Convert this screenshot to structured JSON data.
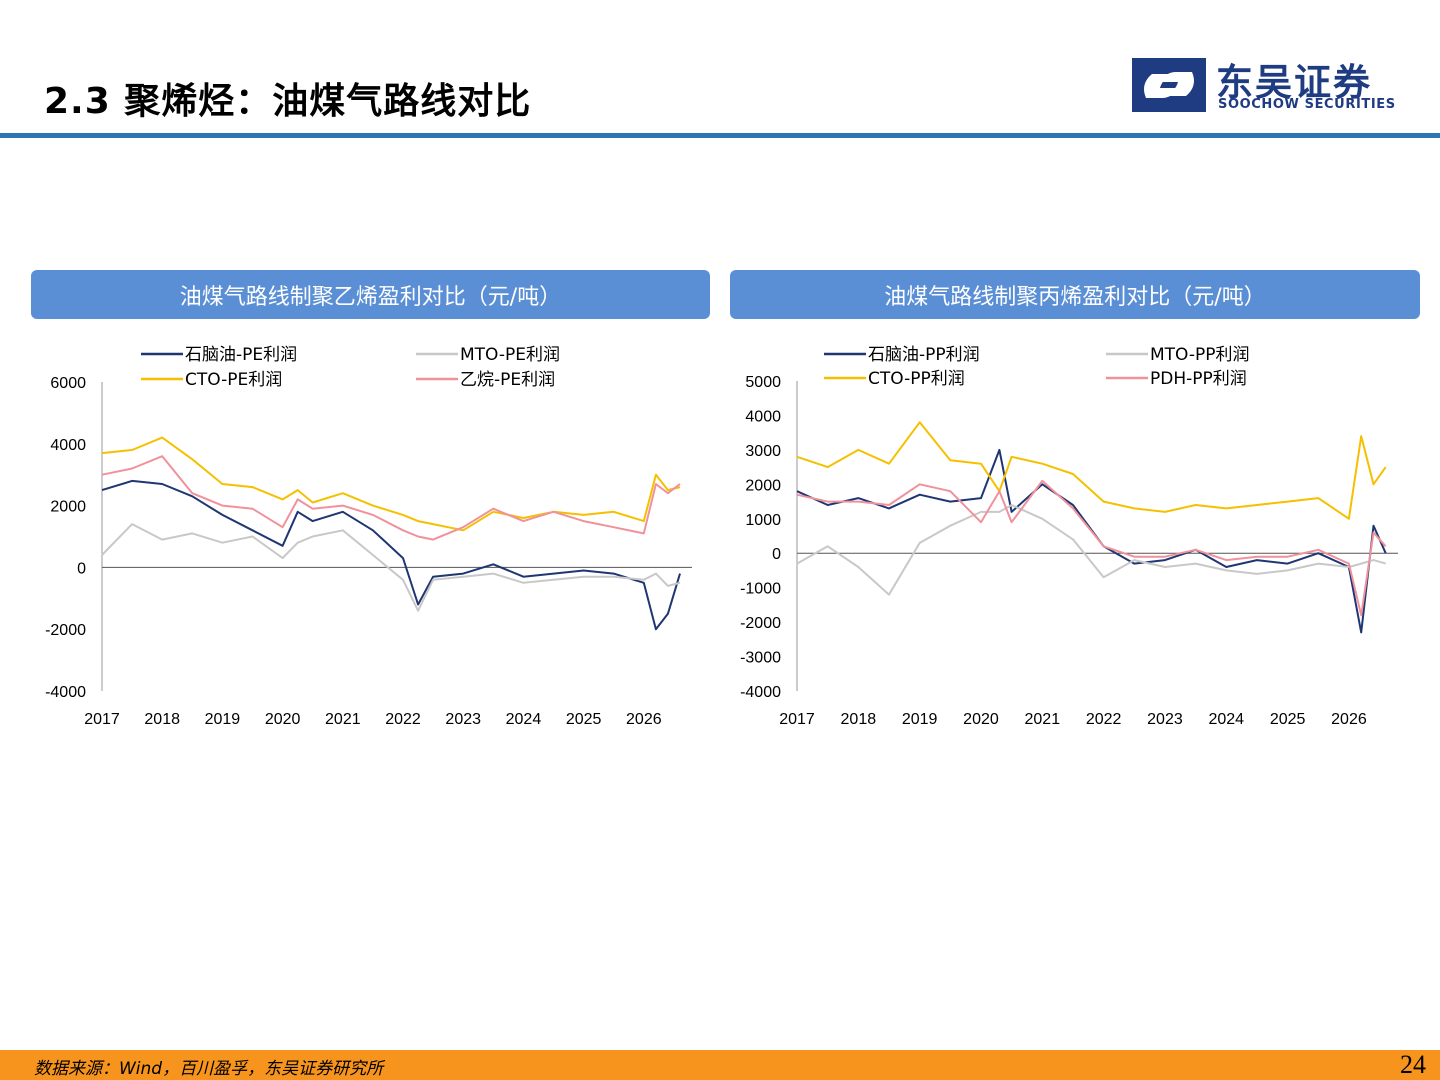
{
  "header": {
    "title": "2.3 聚烯烃：油煤气路线对比",
    "logo_cn": "东吴证券",
    "logo_en": "SOOCHOW SECURITIES",
    "accent": "#2e75b6"
  },
  "footer": {
    "source": "数据来源：Wind，百川盈孚，东吴证券研究所",
    "page_number": "24",
    "bar_color": "#f7941d"
  },
  "chart_data": [
    {
      "type": "line",
      "title": "油煤气路线制聚乙烯盈利对比（元/吨）",
      "x_ticks": [
        "2017",
        "2018",
        "2019",
        "2020",
        "2021",
        "2022",
        "2023",
        "2024",
        "2025",
        "2026"
      ],
      "y_ticks": [
        "6000",
        "4000",
        "2000",
        "0",
        "-2000",
        "-4000"
      ],
      "ylim": [
        -4000,
        6000
      ],
      "legend_placement": "top",
      "x": [
        2017.0,
        2017.5,
        2018.0,
        2018.5,
        2019.0,
        2019.5,
        2020.0,
        2020.25,
        2020.5,
        2021.0,
        2021.5,
        2022.0,
        2022.25,
        2022.5,
        2023.0,
        2023.5,
        2024.0,
        2024.5,
        2025.0,
        2025.5,
        2026.0,
        2026.2,
        2026.4,
        2026.6
      ],
      "series": [
        {
          "name": "石脑油-PE利润",
          "color": "#1f3673",
          "values": [
            2500,
            2800,
            2700,
            2300,
            1700,
            1200,
            700,
            1800,
            1500,
            1800,
            1200,
            300,
            -1200,
            -300,
            -200,
            100,
            -300,
            -200,
            -100,
            -200,
            -500,
            -2000,
            -1500,
            -200
          ]
        },
        {
          "name": "MTO-PE利润",
          "color": "#c8c8c8",
          "values": [
            400,
            1400,
            900,
            1100,
            800,
            1000,
            300,
            800,
            1000,
            1200,
            400,
            -400,
            -1400,
            -400,
            -300,
            -200,
            -500,
            -400,
            -300,
            -300,
            -400,
            -200,
            -600,
            -500
          ]
        },
        {
          "name": "CTO-PE利润",
          "color": "#f5c000",
          "values": [
            3700,
            3800,
            4200,
            3500,
            2700,
            2600,
            2200,
            2500,
            2100,
            2400,
            2000,
            1700,
            1500,
            1400,
            1200,
            1800,
            1600,
            1800,
            1700,
            1800,
            1500,
            3000,
            2500,
            2600
          ]
        },
        {
          "name": "乙烷-PE利润",
          "color": "#f0919b",
          "values": [
            3000,
            3200,
            3600,
            2400,
            2000,
            1900,
            1300,
            2200,
            1900,
            2000,
            1700,
            1200,
            1000,
            900,
            1300,
            1900,
            1500,
            1800,
            1500,
            1300,
            1100,
            2700,
            2400,
            2700
          ]
        }
      ]
    },
    {
      "type": "line",
      "title": "油煤气路线制聚丙烯盈利对比（元/吨）",
      "x_ticks": [
        "2017",
        "2018",
        "2019",
        "2020",
        "2021",
        "2022",
        "2023",
        "2024",
        "2025",
        "2026"
      ],
      "y_ticks": [
        "5000",
        "4000",
        "3000",
        "2000",
        "1000",
        "0",
        "-1000",
        "-2000",
        "-3000",
        "-4000"
      ],
      "ylim": [
        -4000,
        5000
      ],
      "legend_placement": "top",
      "x": [
        2017.0,
        2017.5,
        2018.0,
        2018.5,
        2019.0,
        2019.5,
        2020.0,
        2020.3,
        2020.5,
        2021.0,
        2021.5,
        2022.0,
        2022.5,
        2023.0,
        2023.5,
        2024.0,
        2024.5,
        2025.0,
        2025.5,
        2026.0,
        2026.2,
        2026.4,
        2026.6
      ],
      "series": [
        {
          "name": "石脑油-PP利润",
          "color": "#1f3673",
          "values": [
            1800,
            1400,
            1600,
            1300,
            1700,
            1500,
            1600,
            3000,
            1200,
            2000,
            1400,
            200,
            -300,
            -200,
            100,
            -400,
            -200,
            -300,
            0,
            -400,
            -2300,
            800,
            0
          ]
        },
        {
          "name": "MTO-PP利润",
          "color": "#c8c8c8",
          "values": [
            -300,
            200,
            -400,
            -1200,
            300,
            800,
            1200,
            1200,
            1400,
            1000,
            400,
            -700,
            -200,
            -400,
            -300,
            -500,
            -600,
            -500,
            -300,
            -400,
            -300,
            -200,
            -300
          ]
        },
        {
          "name": "CTO-PP利润",
          "color": "#f5c000",
          "values": [
            2800,
            2500,
            3000,
            2600,
            3800,
            2700,
            2600,
            1800,
            2800,
            2600,
            2300,
            1500,
            1300,
            1200,
            1400,
            1300,
            1400,
            1500,
            1600,
            1000,
            3400,
            2000,
            2500
          ]
        },
        {
          "name": "PDH-PP利润",
          "color": "#f0919b",
          "values": [
            1700,
            1500,
            1500,
            1400,
            2000,
            1800,
            900,
            1800,
            900,
            2100,
            1300,
            200,
            -100,
            -100,
            100,
            -200,
            -100,
            -100,
            100,
            -300,
            -1800,
            600,
            200
          ]
        }
      ]
    }
  ]
}
